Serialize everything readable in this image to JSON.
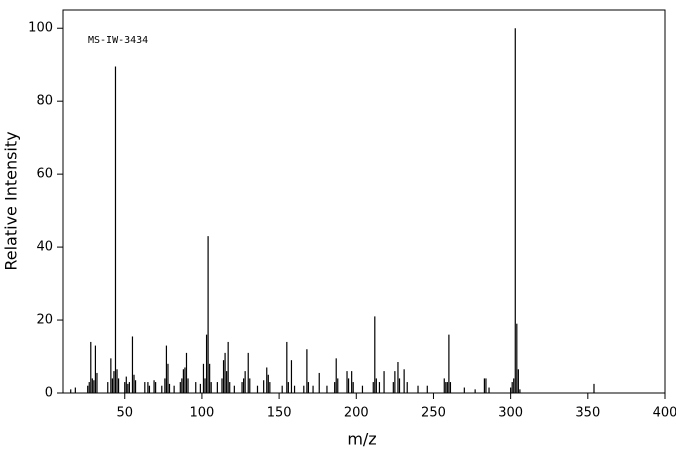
{
  "chart_data": {
    "type": "stem",
    "annotation": "MS-IW-3434",
    "x_label": "m/z",
    "y_label": "Relative Intensity",
    "color": "#000000",
    "x": [
      15,
      18,
      26,
      27,
      28,
      29,
      30,
      31,
      32,
      39,
      41,
      42,
      43,
      44,
      45,
      46,
      50,
      51,
      52,
      53,
      55,
      56,
      57,
      63,
      65,
      66,
      69,
      70,
      74,
      76,
      77,
      78,
      79,
      82,
      86,
      87,
      88,
      89,
      90,
      91,
      96,
      99,
      101,
      102,
      103,
      104,
      105,
      106,
      110,
      113,
      114,
      115,
      116,
      117,
      118,
      121,
      126,
      127,
      128,
      130,
      131,
      136,
      140,
      142,
      143,
      144,
      152,
      155,
      156,
      158,
      160,
      166,
      168,
      169,
      172,
      176,
      181,
      186,
      187,
      188,
      194,
      195,
      197,
      198,
      204,
      211,
      212,
      213,
      215,
      218,
      224,
      225,
      227,
      228,
      231,
      233,
      240,
      246,
      257,
      258,
      259,
      260,
      261,
      270,
      277,
      283,
      284,
      286,
      300,
      301,
      302,
      303,
      304,
      305,
      306,
      354
    ],
    "values": [
      1,
      1.5,
      2,
      3,
      14,
      4,
      3.5,
      13,
      5.5,
      3,
      9.5,
      4,
      6,
      89.5,
      6.5,
      4,
      3,
      4.5,
      2.5,
      3,
      15.5,
      5,
      3.5,
      3,
      3,
      2,
      3.5,
      3,
      2,
      4,
      13,
      8,
      2.5,
      2,
      3,
      4,
      6.5,
      7,
      11,
      4,
      3,
      2.5,
      8,
      4,
      16,
      43,
      8,
      3,
      3,
      4,
      9,
      11,
      6,
      14,
      3,
      2,
      3,
      4,
      6,
      11,
      4,
      2,
      3.5,
      7,
      5,
      3,
      2,
      14,
      3,
      9,
      2,
      2,
      12,
      3,
      2,
      5.5,
      2,
      3,
      9.5,
      4,
      6,
      4,
      6,
      3,
      2,
      3,
      21,
      4,
      3,
      6,
      3,
      6,
      8.5,
      4,
      6.5,
      3,
      2,
      2,
      4,
      3,
      3,
      16,
      3,
      1.5,
      1,
      4,
      4,
      1.5,
      1.5,
      3,
      4,
      100,
      19,
      6.5,
      1,
      2.5
    ],
    "xlim": [
      10,
      400
    ],
    "ylim": [
      0,
      105
    ],
    "xticks": [
      50,
      100,
      150,
      200,
      250,
      300,
      350,
      400
    ],
    "yticks": [
      0,
      20,
      40,
      60,
      80,
      100
    ]
  }
}
